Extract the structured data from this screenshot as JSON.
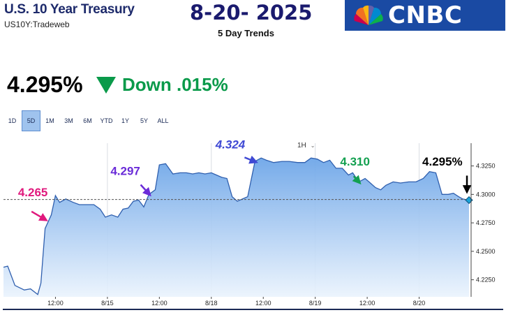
{
  "header": {
    "title": "U.S. 10 Year Treasury",
    "subtitle": "US10Y:Tradeweb",
    "date": "8-20- 2025",
    "trend_label": "5 Day Trends"
  },
  "logo": {
    "text": "CNBC"
  },
  "quote": {
    "price": "4.295%",
    "change": "Down .015%",
    "direction_icon": "down-triangle-icon",
    "change_color": "#0a9a4a"
  },
  "range_tabs": [
    "1D",
    "5D",
    "1M",
    "3M",
    "6M",
    "YTD",
    "1Y",
    "5Y",
    "ALL"
  ],
  "active_range": "5D",
  "interval": {
    "label": "1H"
  },
  "chart_data": {
    "type": "area",
    "ylim": [
      4.21,
      4.345
    ],
    "yticks": [
      4.225,
      4.25,
      4.275,
      4.3,
      4.325
    ],
    "ytick_labels": [
      "4.2250",
      "4.2500",
      "4.2750",
      "4.3000",
      "4.3250"
    ],
    "xlim": [
      0,
      45
    ],
    "xticks": [
      5,
      10,
      15,
      20,
      25,
      30,
      35,
      40
    ],
    "xtick_labels": [
      "12:00",
      "8/15",
      "12:00",
      "8/18",
      "12:00",
      "8/19",
      "12:00",
      "8/20"
    ],
    "day_separators": [
      10,
      20,
      30,
      40
    ],
    "reference_line": 4.2955,
    "color_line": "#2f5fae",
    "color_fill": "#7fb0ea",
    "series": [
      {
        "points": [
          [
            0,
            4.236
          ],
          [
            0.4,
            4.237
          ],
          [
            1.1,
            4.22
          ],
          [
            2,
            4.216
          ],
          [
            2.6,
            4.217
          ],
          [
            3.3,
            4.212
          ],
          [
            3.6,
            4.222
          ],
          [
            4,
            4.27
          ],
          [
            4.6,
            4.282
          ],
          [
            5,
            4.299
          ],
          [
            5.4,
            4.293
          ],
          [
            6,
            4.296
          ],
          [
            6.7,
            4.293
          ],
          [
            7.3,
            4.291
          ],
          [
            8,
            4.291
          ],
          [
            8.7,
            4.291
          ],
          [
            9.3,
            4.287
          ],
          [
            9.8,
            4.28
          ],
          [
            10.4,
            4.282
          ],
          [
            11,
            4.28
          ],
          [
            11.5,
            4.287
          ],
          [
            12,
            4.288
          ],
          [
            12.5,
            4.294
          ],
          [
            13,
            4.295
          ],
          [
            13.5,
            4.289
          ],
          [
            14,
            4.3
          ],
          [
            14.6,
            4.304
          ],
          [
            15,
            4.326
          ],
          [
            15.6,
            4.327
          ],
          [
            16.3,
            4.318
          ],
          [
            17,
            4.319
          ],
          [
            17.6,
            4.319
          ],
          [
            18.2,
            4.318
          ],
          [
            18.8,
            4.319
          ],
          [
            19.4,
            4.318
          ],
          [
            20,
            4.319
          ],
          [
            20.5,
            4.317
          ],
          [
            21,
            4.315
          ],
          [
            21.5,
            4.314
          ],
          [
            22,
            4.298
          ],
          [
            22.5,
            4.294
          ],
          [
            23,
            4.296
          ],
          [
            23.5,
            4.298
          ],
          [
            24.2,
            4.329
          ],
          [
            24.8,
            4.332
          ],
          [
            25.3,
            4.33
          ],
          [
            26,
            4.328
          ],
          [
            26.8,
            4.329
          ],
          [
            27.5,
            4.329
          ],
          [
            28.3,
            4.328
          ],
          [
            29,
            4.328
          ],
          [
            29.6,
            4.332
          ],
          [
            30.2,
            4.331
          ],
          [
            30.8,
            4.328
          ],
          [
            31.4,
            4.33
          ],
          [
            32,
            4.323
          ],
          [
            32.6,
            4.323
          ],
          [
            33.2,
            4.317
          ],
          [
            33.6,
            4.319
          ],
          [
            34.2,
            4.311
          ],
          [
            34.8,
            4.314
          ],
          [
            35.3,
            4.31
          ],
          [
            35.8,
            4.306
          ],
          [
            36.3,
            4.304
          ],
          [
            36.8,
            4.308
          ],
          [
            37.5,
            4.311
          ],
          [
            38.2,
            4.31
          ],
          [
            39,
            4.311
          ],
          [
            39.7,
            4.311
          ],
          [
            40.4,
            4.314
          ],
          [
            41,
            4.32
          ],
          [
            41.6,
            4.319
          ],
          [
            42.2,
            4.3
          ],
          [
            42.8,
            4.3
          ],
          [
            43.3,
            4.301
          ],
          [
            43.8,
            4.298
          ],
          [
            44.2,
            4.296
          ],
          [
            44.8,
            4.295
          ]
        ]
      }
    ],
    "annotations": [
      {
        "label": "4.265",
        "x": 1.4,
        "y": 4.2985,
        "color": "#e0197d",
        "italic": false,
        "arrow": {
          "from": [
            2.7,
            4.285
          ],
          "to": [
            4.0,
            4.278
          ]
        }
      },
      {
        "label": "4.297",
        "x": 10.3,
        "y": 4.317,
        "color": "#6a2bd8",
        "italic": false,
        "arrow": {
          "from": [
            13.2,
            4.3085
          ],
          "to": [
            14.0,
            4.3005
          ]
        }
      },
      {
        "label": "4.324",
        "x": 20.4,
        "y": 4.3405,
        "color": "#3f49d4",
        "italic": true,
        "arrow": {
          "from": [
            23.2,
            4.3325
          ],
          "to": [
            24.2,
            4.3288
          ]
        }
      },
      {
        "label": "4.310",
        "x": 32.4,
        "y": 4.3255,
        "color": "#13a050",
        "italic": false,
        "arrow": {
          "from": [
            33.7,
            4.316
          ],
          "to": [
            34.2,
            4.311
          ]
        }
      },
      {
        "label": "4.295%",
        "x": 40.3,
        "y": 4.3255,
        "color": "#000000",
        "italic": false,
        "arrow": {
          "from": [
            44.6,
            4.3165
          ],
          "to": [
            44.6,
            4.3035
          ]
        }
      }
    ]
  }
}
